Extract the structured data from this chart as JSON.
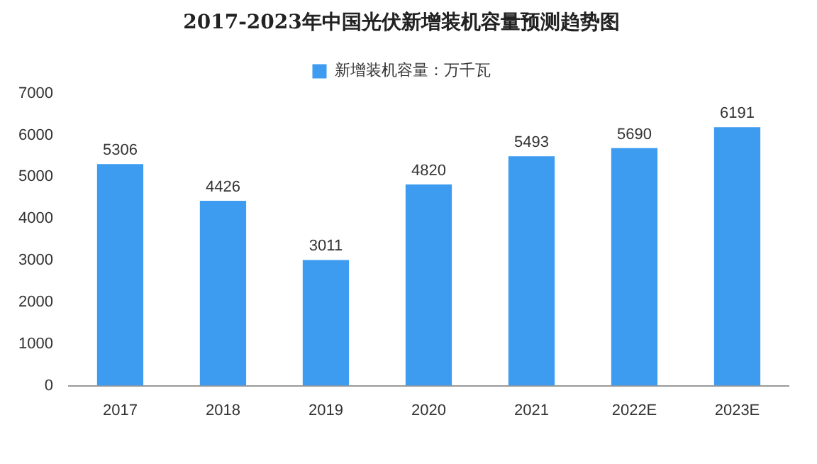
{
  "chart_data": {
    "type": "bar",
    "title": "2017-2023年中国光伏新增装机容量预测趋势图",
    "categories": [
      "2017",
      "2018",
      "2019",
      "2020",
      "2021",
      "2022E",
      "2023E"
    ],
    "series": [
      {
        "name": "新增装机容量：万千瓦",
        "color": "#3d9cf0",
        "values": [
          5306,
          4426,
          3011,
          4820,
          5493,
          5690,
          6191
        ]
      }
    ],
    "ylim": [
      0,
      7000
    ],
    "yticks": [
      0,
      1000,
      2000,
      3000,
      4000,
      5000,
      6000,
      7000
    ],
    "grid": false,
    "legend": "top",
    "data_labels": true
  }
}
